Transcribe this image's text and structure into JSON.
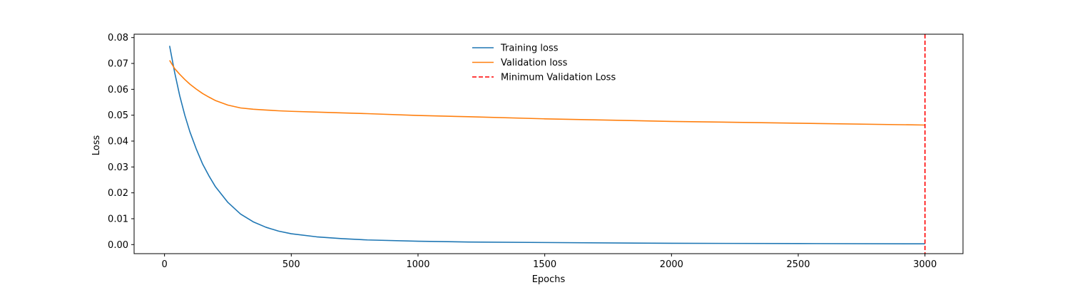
{
  "chart_data": {
    "type": "line",
    "title": "",
    "xlabel": "Epochs",
    "ylabel": "Loss",
    "xlim": [
      -120,
      3150
    ],
    "ylim": [
      -0.0035,
      0.0813
    ],
    "xticks": [
      0,
      500,
      1000,
      1500,
      2000,
      2500,
      3000
    ],
    "xtick_labels": [
      "0",
      "500",
      "1000",
      "1500",
      "2000",
      "2500",
      "3000"
    ],
    "yticks": [
      0.0,
      0.01,
      0.02,
      0.03,
      0.04,
      0.05,
      0.06,
      0.07,
      0.08
    ],
    "ytick_labels": [
      "0.00",
      "0.01",
      "0.02",
      "0.03",
      "0.04",
      "0.05",
      "0.06",
      "0.07",
      "0.08"
    ],
    "grid": false,
    "legend_position": "top-center",
    "series": [
      {
        "name": "Training loss",
        "color": "#1f77b4",
        "style": "solid",
        "x": [
          20,
          40,
          60,
          80,
          100,
          125,
          150,
          175,
          200,
          250,
          300,
          350,
          400,
          450,
          500,
          600,
          700,
          800,
          1000,
          1200,
          1500,
          2000,
          2500,
          3000
        ],
        "y": [
          0.0768,
          0.0665,
          0.0575,
          0.05,
          0.0436,
          0.037,
          0.0312,
          0.0266,
          0.0225,
          0.0163,
          0.0118,
          0.0088,
          0.0067,
          0.0052,
          0.0042,
          0.003,
          0.0023,
          0.0018,
          0.0013,
          0.001,
          0.0008,
          0.0005,
          0.0004,
          0.0003
        ]
      },
      {
        "name": "Validation loss",
        "color": "#ff7f0e",
        "style": "solid",
        "x": [
          20,
          40,
          60,
          80,
          100,
          125,
          150,
          175,
          200,
          250,
          300,
          350,
          400,
          450,
          500,
          600,
          700,
          800,
          1000,
          1200,
          1500,
          2000,
          2500,
          3000
        ],
        "y": [
          0.0712,
          0.068,
          0.0658,
          0.0638,
          0.062,
          0.0601,
          0.0584,
          0.057,
          0.0557,
          0.0539,
          0.0528,
          0.0523,
          0.052,
          0.0517,
          0.0515,
          0.0512,
          0.0509,
          0.0506,
          0.0499,
          0.0494,
          0.0486,
          0.0476,
          0.0469,
          0.0462
        ]
      }
    ],
    "vlines": [
      {
        "name": "Minimum Validation Loss",
        "x": 3000,
        "color": "#ff0000",
        "style": "dashed"
      }
    ]
  }
}
